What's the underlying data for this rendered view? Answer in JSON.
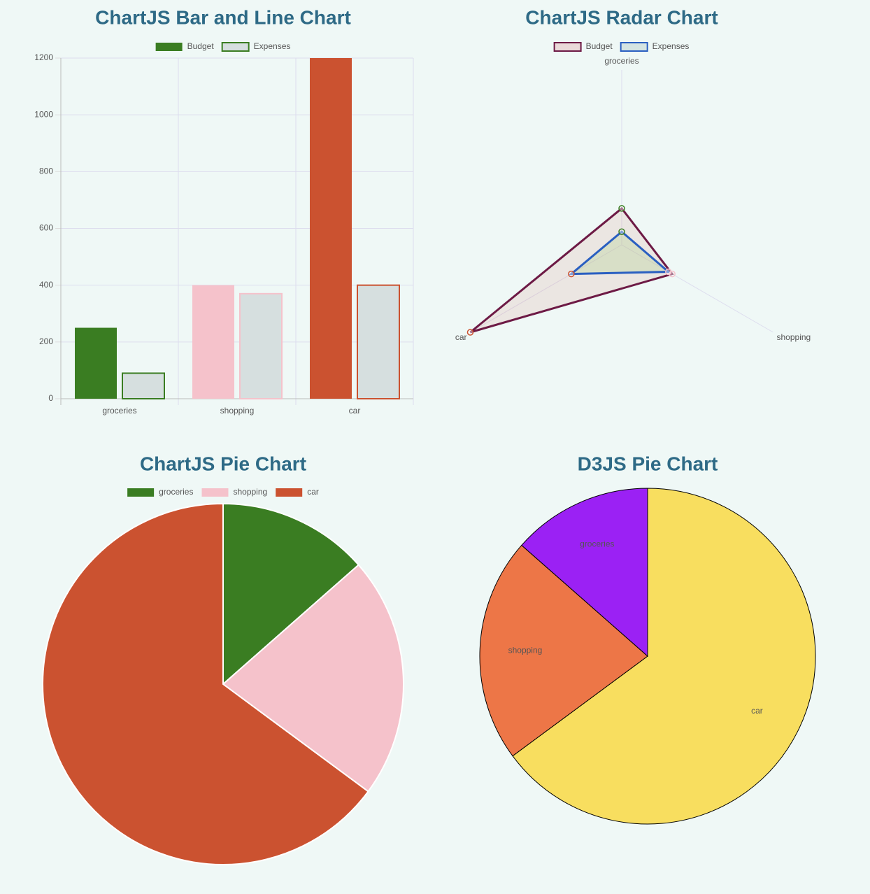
{
  "chart_data": [
    {
      "type": "bar",
      "title": "ChartJS Bar and Line Chart",
      "categories": [
        "groceries",
        "shopping",
        "car"
      ],
      "series": [
        {
          "name": "Budget",
          "color": [
            "#3a7d22",
            "#f5c2cb",
            "#cb5230"
          ],
          "values": [
            250,
            400,
            1200
          ]
        },
        {
          "name": "Expenses",
          "color": "#d6dfdf",
          "border_color": [
            "#3a7d22",
            "#f5c2cb",
            "#cb5230"
          ],
          "values": [
            90,
            370,
            400
          ]
        }
      ],
      "ylim": [
        0,
        1200
      ],
      "yticks": [
        0,
        200,
        400,
        600,
        800,
        1000,
        1200
      ],
      "grid": true,
      "legend": "top"
    },
    {
      "type": "radar",
      "title": "ChartJS Radar Chart",
      "categories": [
        "groceries",
        "shopping",
        "car"
      ],
      "series": [
        {
          "name": "Budget",
          "color": "#6d1a45",
          "values": [
            250,
            400,
            1200
          ]
        },
        {
          "name": "Expenses",
          "color": "#2a5fc1",
          "values": [
            90,
            370,
            400
          ]
        }
      ],
      "point_colors": [
        "#3a7d22",
        "#f5c2cb",
        "#cb5230"
      ],
      "rlim": [
        0,
        1200
      ],
      "legend": "top"
    },
    {
      "type": "pie",
      "title": "ChartJS Pie Chart",
      "categories": [
        "groceries",
        "shopping",
        "car"
      ],
      "values": [
        250,
        400,
        1200
      ],
      "colors": [
        "#3a7d22",
        "#f5c2cb",
        "#cb5230"
      ],
      "legend": "top"
    },
    {
      "type": "pie",
      "title": "D3JS Pie Chart",
      "categories": [
        "car",
        "shopping",
        "groceries"
      ],
      "values": [
        1200,
        400,
        250
      ],
      "colors": [
        "#f8de5f",
        "#ed7647",
        "#9b21f4"
      ],
      "legend": "none"
    }
  ]
}
